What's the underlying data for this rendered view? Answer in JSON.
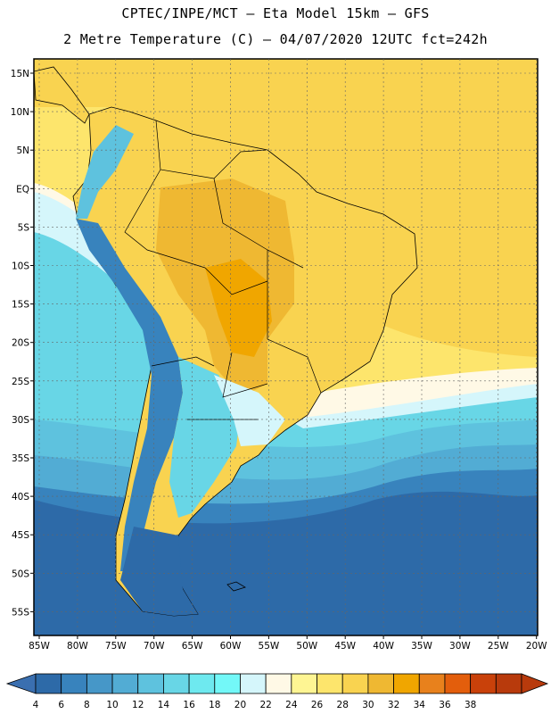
{
  "header": {
    "line1": "CPTEC/INPE/MCT –  Eta Model 15km – GFS",
    "line2": "2 Metre Temperature (C) – 04/07/2020 12UTC fct=242h"
  },
  "axes": {
    "lat_labels": [
      "15N",
      "10N",
      "5N",
      "EQ",
      "5S",
      "10S",
      "15S",
      "20S",
      "25S",
      "30S",
      "35S",
      "40S",
      "45S",
      "50S",
      "55S"
    ],
    "lon_labels": [
      "85W",
      "80W",
      "75W",
      "70W",
      "65W",
      "60W",
      "55W",
      "50W",
      "45W",
      "40W",
      "35W",
      "30W",
      "25W",
      "20W"
    ]
  },
  "colorbar": {
    "labels": [
      "4",
      "6",
      "8",
      "10",
      "12",
      "14",
      "16",
      "18",
      "20",
      "22",
      "24",
      "26",
      "28",
      "30",
      "32",
      "34",
      "36",
      "38"
    ],
    "colors": [
      "#2d6aa8",
      "#3883bd",
      "#4697c8",
      "#52acd4",
      "#5ec2de",
      "#68d6e6",
      "#6ee9ef",
      "#73f8f8",
      "#d5f6fb",
      "#fff9e6",
      "#fef593",
      "#fde56c",
      "#f9d350",
      "#efb832",
      "#f0a600",
      "#e8811c",
      "#e35e0c",
      "#c9410a",
      "#b83a0c"
    ],
    "under_color": "#3a6fb0",
    "over_color": "#b83a0c"
  }
}
